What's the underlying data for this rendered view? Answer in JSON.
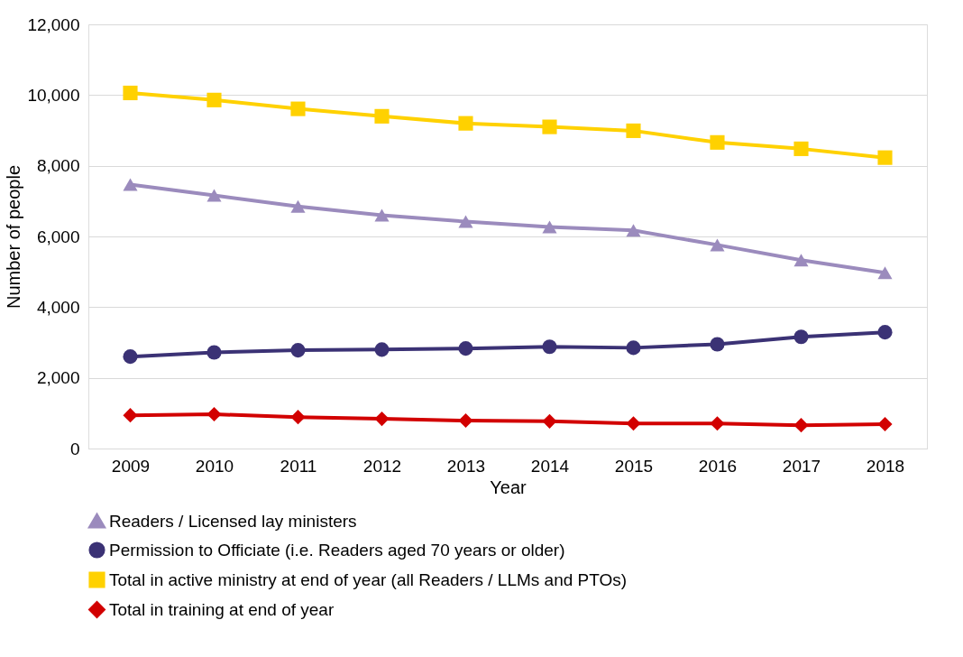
{
  "chart_data": {
    "type": "line",
    "xlabel": "Year",
    "ylabel": "Number of people",
    "categories": [
      "2009",
      "2010",
      "2011",
      "2012",
      "2013",
      "2014",
      "2015",
      "2016",
      "2017",
      "2018"
    ],
    "series": [
      {
        "name": "Readers / Licensed lay ministers",
        "color": "#9b8bbd",
        "marker": "triangle",
        "values": [
          7470,
          7160,
          6850,
          6600,
          6420,
          6270,
          6170,
          5760,
          5330,
          4970
        ]
      },
      {
        "name": "Permission to Officiate (i.e. Readers aged 70 years or older)",
        "color": "#3b3275",
        "marker": "circle",
        "values": [
          2600,
          2720,
          2780,
          2800,
          2830,
          2880,
          2850,
          2950,
          3160,
          3290
        ]
      },
      {
        "name": "Total in active ministry at end of year (all Readers / LLMs and PTOs)",
        "color": "#ffd100",
        "marker": "square",
        "values": [
          10060,
          9860,
          9610,
          9400,
          9200,
          9100,
          8990,
          8660,
          8480,
          8230
        ]
      },
      {
        "name": "Total in training at end of year",
        "color": "#d20000",
        "marker": "diamond",
        "values": [
          940,
          970,
          890,
          840,
          790,
          770,
          710,
          710,
          660,
          690
        ]
      }
    ],
    "ylim": [
      0,
      12000
    ],
    "yticks": [
      0,
      {
        "value": 2000,
        "label": "2,000"
      },
      {
        "value": 4000,
        "label": "4,000"
      },
      {
        "value": 6000,
        "label": "6,000"
      },
      {
        "value": 8000,
        "label": "8,000"
      },
      {
        "value": 10000,
        "label": "10,000"
      },
      {
        "value": 12000,
        "label": "12,000"
      }
    ],
    "grid": "y",
    "legend": "bottom",
    "line_style": "solid"
  }
}
